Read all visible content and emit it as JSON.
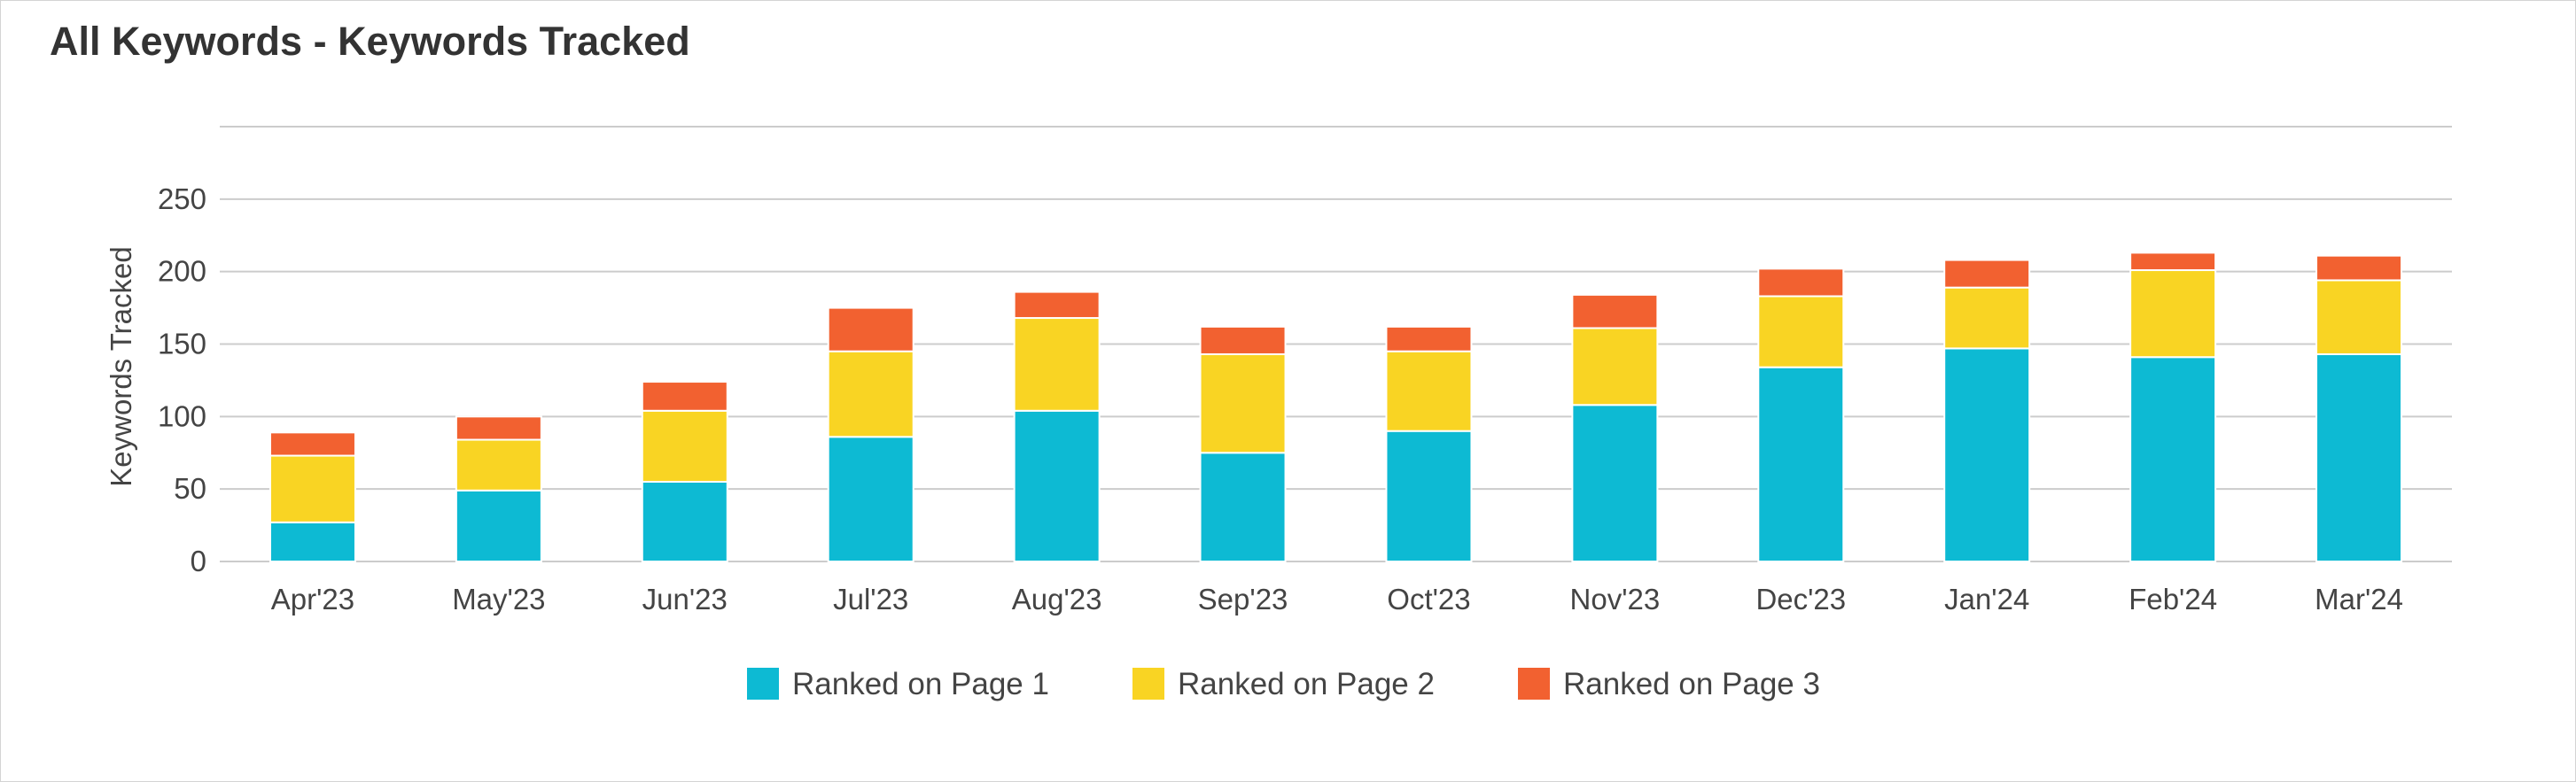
{
  "panel": {
    "title": "All Keywords - Keywords Tracked"
  },
  "chart_data": {
    "type": "bar",
    "stacked": true,
    "ylabel": "Keywords Tracked",
    "xlabel": "",
    "ylim": [
      0,
      300
    ],
    "yticks": [
      0,
      50,
      100,
      150,
      200,
      250
    ],
    "grid": true,
    "legend_position": "bottom",
    "categories": [
      "Apr'23",
      "May'23",
      "Jun'23",
      "Jul'23",
      "Aug'23",
      "Sep'23",
      "Oct'23",
      "Nov'23",
      "Dec'23",
      "Jan'24",
      "Feb'24",
      "Mar'24"
    ],
    "series": [
      {
        "name": "Ranked on Page 1",
        "color": "#0dbad3",
        "values": [
          27,
          49,
          55,
          86,
          104,
          75,
          90,
          108,
          134,
          147,
          141,
          143
        ]
      },
      {
        "name": "Ranked on Page 2",
        "color": "#f9d423",
        "values": [
          46,
          35,
          49,
          59,
          64,
          68,
          55,
          53,
          49,
          42,
          60,
          51
        ]
      },
      {
        "name": "Ranked on Page 3",
        "color": "#f26130",
        "values": [
          16,
          16,
          20,
          30,
          18,
          19,
          17,
          23,
          19,
          19,
          12,
          17
        ]
      }
    ]
  }
}
